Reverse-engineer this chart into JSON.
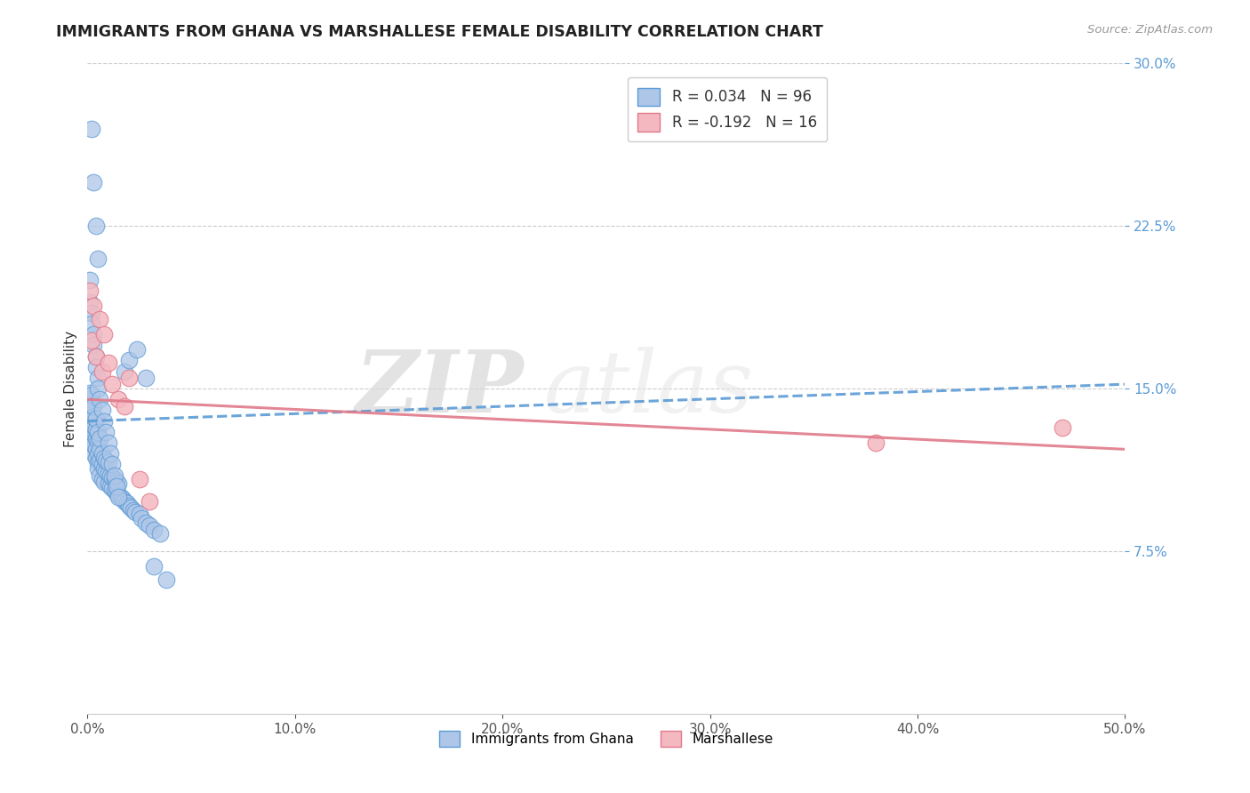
{
  "title": "IMMIGRANTS FROM GHANA VS MARSHALLESE FEMALE DISABILITY CORRELATION CHART",
  "source": "Source: ZipAtlas.com",
  "ylabel": "Female Disability",
  "xlim": [
    0.0,
    0.5
  ],
  "ylim": [
    0.0,
    0.3
  ],
  "ytick_vals": [
    0.075,
    0.15,
    0.225,
    0.3
  ],
  "ytick_labels": [
    "7.5%",
    "15.0%",
    "22.5%",
    "30.0%"
  ],
  "xtick_vals": [
    0.0,
    0.1,
    0.2,
    0.3,
    0.4,
    0.5
  ],
  "xtick_labels": [
    "0.0%",
    "10.0%",
    "20.0%",
    "30.0%",
    "40.0%",
    "50.0%"
  ],
  "ghana_color": "#aec6e8",
  "ghana_edge_color": "#5b9bd5",
  "marshallese_color": "#f4b8c1",
  "marshallese_edge_color": "#e07a8a",
  "ghana_R": 0.034,
  "ghana_N": 96,
  "marshallese_R": -0.192,
  "marshallese_N": 16,
  "ghana_line_color": "#5b9bd5",
  "marshallese_line_color": "#e07a8a",
  "legend_ghana_label": "Immigrants from Ghana",
  "legend_marshallese_label": "Marshallese",
  "watermark_zip": "ZIP",
  "watermark_atlas": "atlas",
  "ghana_line_y0": 0.135,
  "ghana_line_y1": 0.152,
  "marshallese_line_y0": 0.145,
  "marshallese_line_y1": 0.122,
  "ghana_scatter_x": [
    0.001,
    0.001,
    0.001,
    0.001,
    0.001,
    0.002,
    0.002,
    0.002,
    0.002,
    0.002,
    0.002,
    0.003,
    0.003,
    0.003,
    0.003,
    0.003,
    0.003,
    0.004,
    0.004,
    0.004,
    0.004,
    0.004,
    0.005,
    0.005,
    0.005,
    0.005,
    0.005,
    0.006,
    0.006,
    0.006,
    0.006,
    0.007,
    0.007,
    0.007,
    0.008,
    0.008,
    0.008,
    0.009,
    0.009,
    0.01,
    0.01,
    0.01,
    0.011,
    0.011,
    0.012,
    0.012,
    0.013,
    0.013,
    0.014,
    0.014,
    0.015,
    0.015,
    0.016,
    0.017,
    0.018,
    0.019,
    0.02,
    0.021,
    0.022,
    0.023,
    0.025,
    0.026,
    0.028,
    0.03,
    0.032,
    0.035,
    0.002,
    0.003,
    0.004,
    0.005,
    0.001,
    0.001,
    0.002,
    0.002,
    0.003,
    0.003,
    0.004,
    0.004,
    0.005,
    0.005,
    0.006,
    0.007,
    0.008,
    0.009,
    0.01,
    0.011,
    0.012,
    0.013,
    0.014,
    0.015,
    0.018,
    0.02,
    0.024,
    0.028,
    0.032,
    0.038
  ],
  "ghana_scatter_y": [
    0.14,
    0.145,
    0.148,
    0.132,
    0.135,
    0.138,
    0.142,
    0.147,
    0.128,
    0.131,
    0.125,
    0.129,
    0.133,
    0.137,
    0.142,
    0.12,
    0.124,
    0.127,
    0.131,
    0.136,
    0.118,
    0.122,
    0.126,
    0.13,
    0.116,
    0.12,
    0.113,
    0.117,
    0.122,
    0.127,
    0.11,
    0.115,
    0.12,
    0.108,
    0.113,
    0.118,
    0.107,
    0.112,
    0.117,
    0.106,
    0.111,
    0.116,
    0.105,
    0.11,
    0.104,
    0.109,
    0.103,
    0.108,
    0.102,
    0.107,
    0.101,
    0.106,
    0.1,
    0.099,
    0.098,
    0.097,
    0.096,
    0.095,
    0.094,
    0.093,
    0.092,
    0.09,
    0.088,
    0.087,
    0.085,
    0.083,
    0.27,
    0.245,
    0.225,
    0.21,
    0.2,
    0.19,
    0.185,
    0.18,
    0.175,
    0.17,
    0.165,
    0.16,
    0.155,
    0.15,
    0.145,
    0.14,
    0.135,
    0.13,
    0.125,
    0.12,
    0.115,
    0.11,
    0.105,
    0.1,
    0.158,
    0.163,
    0.168,
    0.155,
    0.068,
    0.062
  ],
  "marshallese_scatter_x": [
    0.001,
    0.002,
    0.003,
    0.004,
    0.006,
    0.007,
    0.008,
    0.01,
    0.012,
    0.015,
    0.018,
    0.02,
    0.025,
    0.03,
    0.38,
    0.47
  ],
  "marshallese_scatter_y": [
    0.195,
    0.172,
    0.188,
    0.165,
    0.182,
    0.158,
    0.175,
    0.162,
    0.152,
    0.145,
    0.142,
    0.155,
    0.108,
    0.098,
    0.125,
    0.132
  ]
}
